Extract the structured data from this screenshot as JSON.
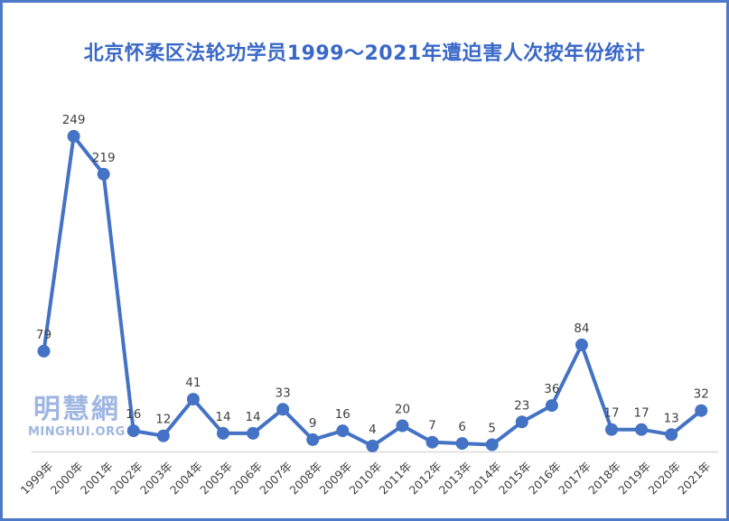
{
  "title": "北京怀柔区法轮功学员1999～2021年遭迫害人次按年份统计",
  "watermark": {
    "cn": "明慧網",
    "en": "MINGHUI.ORG"
  },
  "colors": {
    "line": "#4472C4",
    "marker": "#4472C4",
    "data_label": "#404040",
    "axis_line": "#D9D9D9",
    "tick_label": "#3F3F3F",
    "title": "#3A68C8",
    "watermark": "#8FAADC",
    "border": "#4E79C6",
    "background": "#FFFFFF"
  },
  "chart_data": {
    "type": "line",
    "title": "北京怀柔区法轮功学员1999～2021年遭迫害人次按年份统计",
    "categories": [
      "1999年",
      "2000年",
      "2001年",
      "2002年",
      "2003年",
      "2004年",
      "2005年",
      "2006年",
      "2007年",
      "2008年",
      "2009年",
      "2010年",
      "2011年",
      "2012年",
      "2013年",
      "2014年",
      "2015年",
      "2016年",
      "2017年",
      "2018年",
      "2019年",
      "2020年",
      "2021年"
    ],
    "values": [
      79,
      249,
      219,
      16,
      12,
      41,
      14,
      14,
      33,
      9,
      16,
      4,
      20,
      7,
      6,
      5,
      23,
      36,
      84,
      17,
      17,
      13,
      32
    ],
    "xlabel": "",
    "ylabel": "",
    "ylim": [
      0,
      260
    ],
    "grid": false,
    "legend": false,
    "data_labels": true,
    "marker_style": "circle",
    "x_tick_rotation": 45
  }
}
